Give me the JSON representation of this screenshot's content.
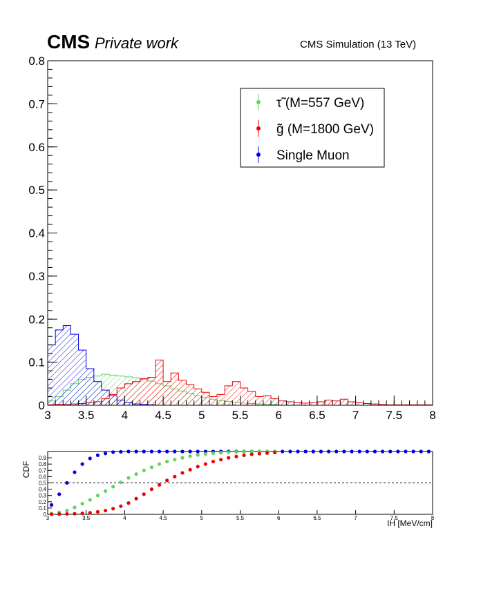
{
  "header": {
    "cms_label": "CMS",
    "private_label": "Private work",
    "simulation_label": "CMS Simulation (13 TeV)"
  },
  "colors": {
    "stau": "#5fd35f",
    "gluino": "#ee0000",
    "muon": "#0000dd"
  },
  "chart_data": [
    {
      "type": "histogram",
      "xlim": [
        3,
        8
      ],
      "ylim": [
        0,
        0.8
      ],
      "x_ticks": [
        3,
        3.5,
        4,
        4.5,
        5,
        5.5,
        6,
        6.5,
        7,
        7.5,
        8
      ],
      "x_tick_labels": [
        "3",
        "3.5",
        "4",
        "4.5",
        "5",
        "5.5",
        "6",
        "6.5",
        "7",
        "7.5",
        "8"
      ],
      "y_ticks": [
        0,
        0.1,
        0.2,
        0.3,
        0.4,
        0.5,
        0.6,
        0.7,
        0.8
      ],
      "y_tick_labels": [
        "0",
        "0.1",
        "0.2",
        "0.3",
        "0.4",
        "0.5",
        "0.6",
        "0.7",
        "0.8"
      ],
      "bin_width": 0.1,
      "fill": "hatched",
      "legend_position": "top-right",
      "legend": [
        {
          "key": "stau",
          "label": "τ̃ (M=557 GeV)"
        },
        {
          "key": "gluino",
          "label": "g̃ (M=1800 GeV)"
        },
        {
          "key": "muon",
          "label": "Single Muon"
        }
      ],
      "series": [
        {
          "key": "stau",
          "name": "τ̃ (M=557 GeV)",
          "bin_edges_start": 3.0,
          "values": [
            0.01,
            0.02,
            0.035,
            0.05,
            0.06,
            0.065,
            0.068,
            0.072,
            0.07,
            0.068,
            0.066,
            0.064,
            0.06,
            0.056,
            0.05,
            0.045,
            0.038,
            0.033,
            0.028,
            0.022,
            0.018,
            0.014,
            0.011,
            0.009,
            0.007,
            0.005,
            0.004,
            0.003,
            0.002,
            0.002
          ]
        },
        {
          "key": "gluino",
          "name": "g̃ (M=1800 GeV)",
          "bin_edges_start": 3.0,
          "values": [
            0.001,
            0.002,
            0.002,
            0.003,
            0.004,
            0.006,
            0.008,
            0.015,
            0.025,
            0.04,
            0.05,
            0.055,
            0.062,
            0.065,
            0.105,
            0.055,
            0.075,
            0.058,
            0.048,
            0.038,
            0.03,
            0.02,
            0.025,
            0.045,
            0.055,
            0.04,
            0.032,
            0.02,
            0.022,
            0.015,
            0.01,
            0.008,
            0.006,
            0.005,
            0.006,
            0.008,
            0.012,
            0.01,
            0.014,
            0.008,
            0.006,
            0.004,
            0.003,
            0.002,
            0.001,
            0.001,
            0.001,
            0.001,
            0.001,
            0.001,
            0.001,
            0.001,
            0.001,
            0.001,
            0.001,
            0.009,
            0.001,
            0.001,
            0.005,
            0.001
          ]
        },
        {
          "key": "muon",
          "name": "Single Muon",
          "bin_edges_start": 3.0,
          "values": [
            0.14,
            0.175,
            0.185,
            0.165,
            0.128,
            0.085,
            0.055,
            0.035,
            0.022,
            0.012,
            0.006,
            0.003,
            0.002,
            0.001
          ]
        }
      ]
    },
    {
      "type": "scatter",
      "ylabel": "CDF",
      "xlabel": "IH [MeV/cm]",
      "xlim": [
        3,
        8
      ],
      "ylim": [
        0,
        1
      ],
      "x_ticks": [
        3,
        3.5,
        4,
        4.5,
        5,
        5.5,
        6,
        6.5,
        7,
        7.5,
        8
      ],
      "x_tick_labels": [
        "3",
        "3.5",
        "4",
        "4.5",
        "5",
        "5.5",
        "6",
        "6.5",
        "7",
        "7.5",
        "8"
      ],
      "y_ticks": [
        0,
        0.1,
        0.2,
        0.3,
        0.4,
        0.5,
        0.6,
        0.7,
        0.8,
        0.9
      ],
      "y_tick_labels": [
        "0",
        "0.1",
        "0.2",
        "0.3",
        "0.4",
        "0.5",
        "0.6",
        "0.7",
        "0.8",
        "0.9"
      ],
      "reference_line": 0.5,
      "series": [
        {
          "key": "muon",
          "x": [
            3.05,
            3.15,
            3.25,
            3.35,
            3.45,
            3.55,
            3.65,
            3.75,
            3.85,
            3.95,
            4.05,
            4.15,
            4.25,
            4.35,
            4.45,
            4.55,
            4.65,
            4.75,
            4.85,
            4.95,
            5.05,
            5.15,
            5.25,
            5.35,
            5.45,
            5.55,
            5.65,
            5.75,
            5.85,
            5.95,
            6.05,
            6.15,
            6.25,
            6.35,
            6.45,
            6.55,
            6.65,
            6.75,
            6.85,
            6.95,
            7.05,
            7.15,
            7.25,
            7.35,
            7.45,
            7.55,
            7.65,
            7.75,
            7.85,
            7.95
          ],
          "y": [
            0.15,
            0.32,
            0.5,
            0.67,
            0.8,
            0.89,
            0.94,
            0.97,
            0.99,
            0.995,
            1,
            1,
            1,
            1,
            1,
            1,
            1,
            1,
            1,
            1,
            1,
            1,
            1,
            1,
            1,
            1,
            1,
            1,
            1,
            1,
            1,
            1,
            1,
            1,
            1,
            1,
            1,
            1,
            1,
            1,
            1,
            1,
            1,
            1,
            1,
            1,
            1,
            1,
            1,
            1
          ]
        },
        {
          "key": "stau",
          "x": [
            3.05,
            3.15,
            3.25,
            3.35,
            3.45,
            3.55,
            3.65,
            3.75,
            3.85,
            3.95,
            4.05,
            4.15,
            4.25,
            4.35,
            4.45,
            4.55,
            4.65,
            4.75,
            4.85,
            4.95,
            5.05,
            5.15,
            5.25,
            5.35,
            5.45,
            5.55,
            5.65,
            5.75,
            5.85,
            5.95
          ],
          "y": [
            0.01,
            0.03,
            0.06,
            0.11,
            0.17,
            0.23,
            0.3,
            0.37,
            0.44,
            0.51,
            0.58,
            0.64,
            0.7,
            0.75,
            0.8,
            0.84,
            0.87,
            0.9,
            0.925,
            0.945,
            0.96,
            0.972,
            0.981,
            0.988,
            0.993,
            0.996,
            0.998,
            0.999,
            1,
            1
          ]
        },
        {
          "key": "gluino",
          "x": [
            3.05,
            3.15,
            3.25,
            3.35,
            3.45,
            3.55,
            3.65,
            3.75,
            3.85,
            3.95,
            4.05,
            4.15,
            4.25,
            4.35,
            4.45,
            4.55,
            4.65,
            4.75,
            4.85,
            4.95,
            5.05,
            5.15,
            5.25,
            5.35,
            5.45,
            5.55,
            5.65,
            5.75,
            5.85,
            5.95
          ],
          "y": [
            0.002,
            0.004,
            0.006,
            0.01,
            0.015,
            0.025,
            0.04,
            0.06,
            0.09,
            0.13,
            0.18,
            0.25,
            0.32,
            0.4,
            0.47,
            0.54,
            0.6,
            0.66,
            0.71,
            0.76,
            0.8,
            0.84,
            0.87,
            0.9,
            0.92,
            0.94,
            0.955,
            0.965,
            0.975,
            0.985
          ]
        }
      ]
    }
  ]
}
